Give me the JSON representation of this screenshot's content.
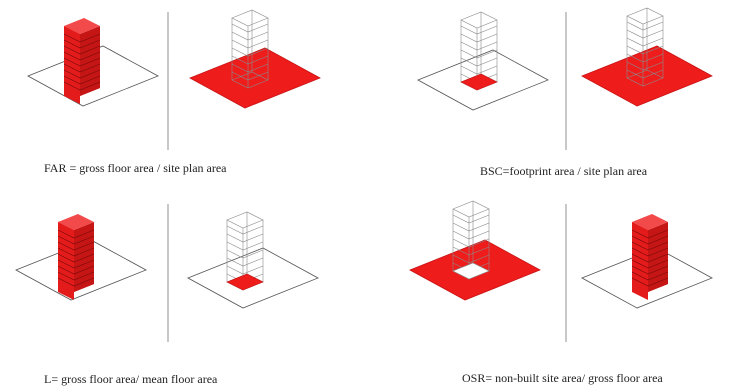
{
  "captions": {
    "far": "FAR = gross floor area / site plan area",
    "bsc": "BSC=footprint area / site plan area",
    "l": "L= gross floor area/ mean floor area",
    "osr": "OSR= non-built site area/ gross floor area"
  },
  "colors": {
    "highlight": "#ef1c1c",
    "highlight_dark": "#c81414",
    "line": "#555555",
    "ghost_line": "#8a8a8a",
    "background": "#ffffff"
  }
}
